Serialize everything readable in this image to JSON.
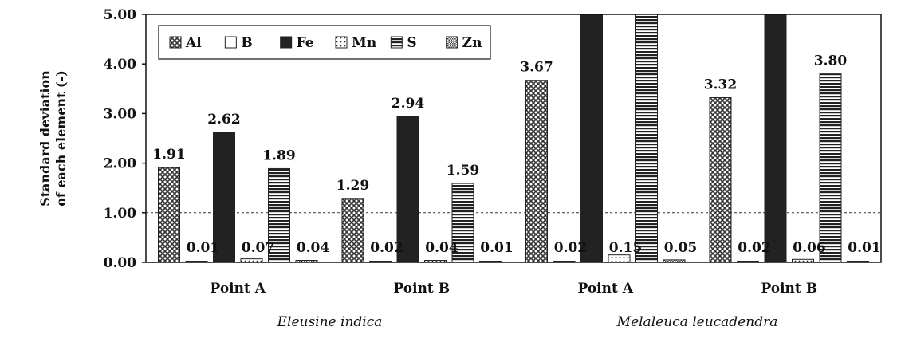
{
  "chart_data": {
    "type": "bar",
    "ylabel": [
      "Standard deviation",
      "of each element (-)"
    ],
    "ylim": [
      0,
      5
    ],
    "yticks": [
      "0.00",
      "1.00",
      "2.00",
      "3.00",
      "4.00",
      "5.00"
    ],
    "reference_line": 1.0,
    "categories": [
      "Point A",
      "Point B",
      "Point A",
      "Point B"
    ],
    "groups": [
      {
        "label": "Eleusine indica",
        "categories": [
          0,
          1
        ]
      },
      {
        "label": "Melaleuca leucadendra",
        "categories": [
          2,
          3
        ]
      }
    ],
    "legend_position": "top-left",
    "series": [
      {
        "name": "Al",
        "values": [
          1.91,
          1.29,
          3.67,
          3.32
        ],
        "labels": [
          "1.91",
          "1.29",
          "3.67",
          "3.32"
        ],
        "pattern": "crosshatch"
      },
      {
        "name": "B",
        "values": [
          0.01,
          0.02,
          0.02,
          0.02
        ],
        "labels": [
          "0.01",
          "0.02",
          "0.02",
          "0.02"
        ],
        "pattern": "white"
      },
      {
        "name": "Fe",
        "values": [
          2.62,
          2.94,
          5.0,
          5.0
        ],
        "labels": [
          "2.62",
          "2.94",
          "",
          ""
        ],
        "pattern": "solid"
      },
      {
        "name": "Mn",
        "values": [
          0.07,
          0.04,
          0.15,
          0.06
        ],
        "labels": [
          "0.07",
          "0.04",
          "0.15",
          "0.06"
        ],
        "pattern": "dots"
      },
      {
        "name": "S",
        "values": [
          1.89,
          1.59,
          5.0,
          3.8
        ],
        "labels": [
          "1.89",
          "1.59",
          "",
          "3.80"
        ],
        "pattern": "hstripes"
      },
      {
        "name": "Zn",
        "values": [
          0.04,
          0.01,
          0.05,
          0.01
        ],
        "labels": [
          "0.04",
          "0.01",
          "0.05",
          "0.01"
        ],
        "pattern": "fine"
      }
    ]
  }
}
